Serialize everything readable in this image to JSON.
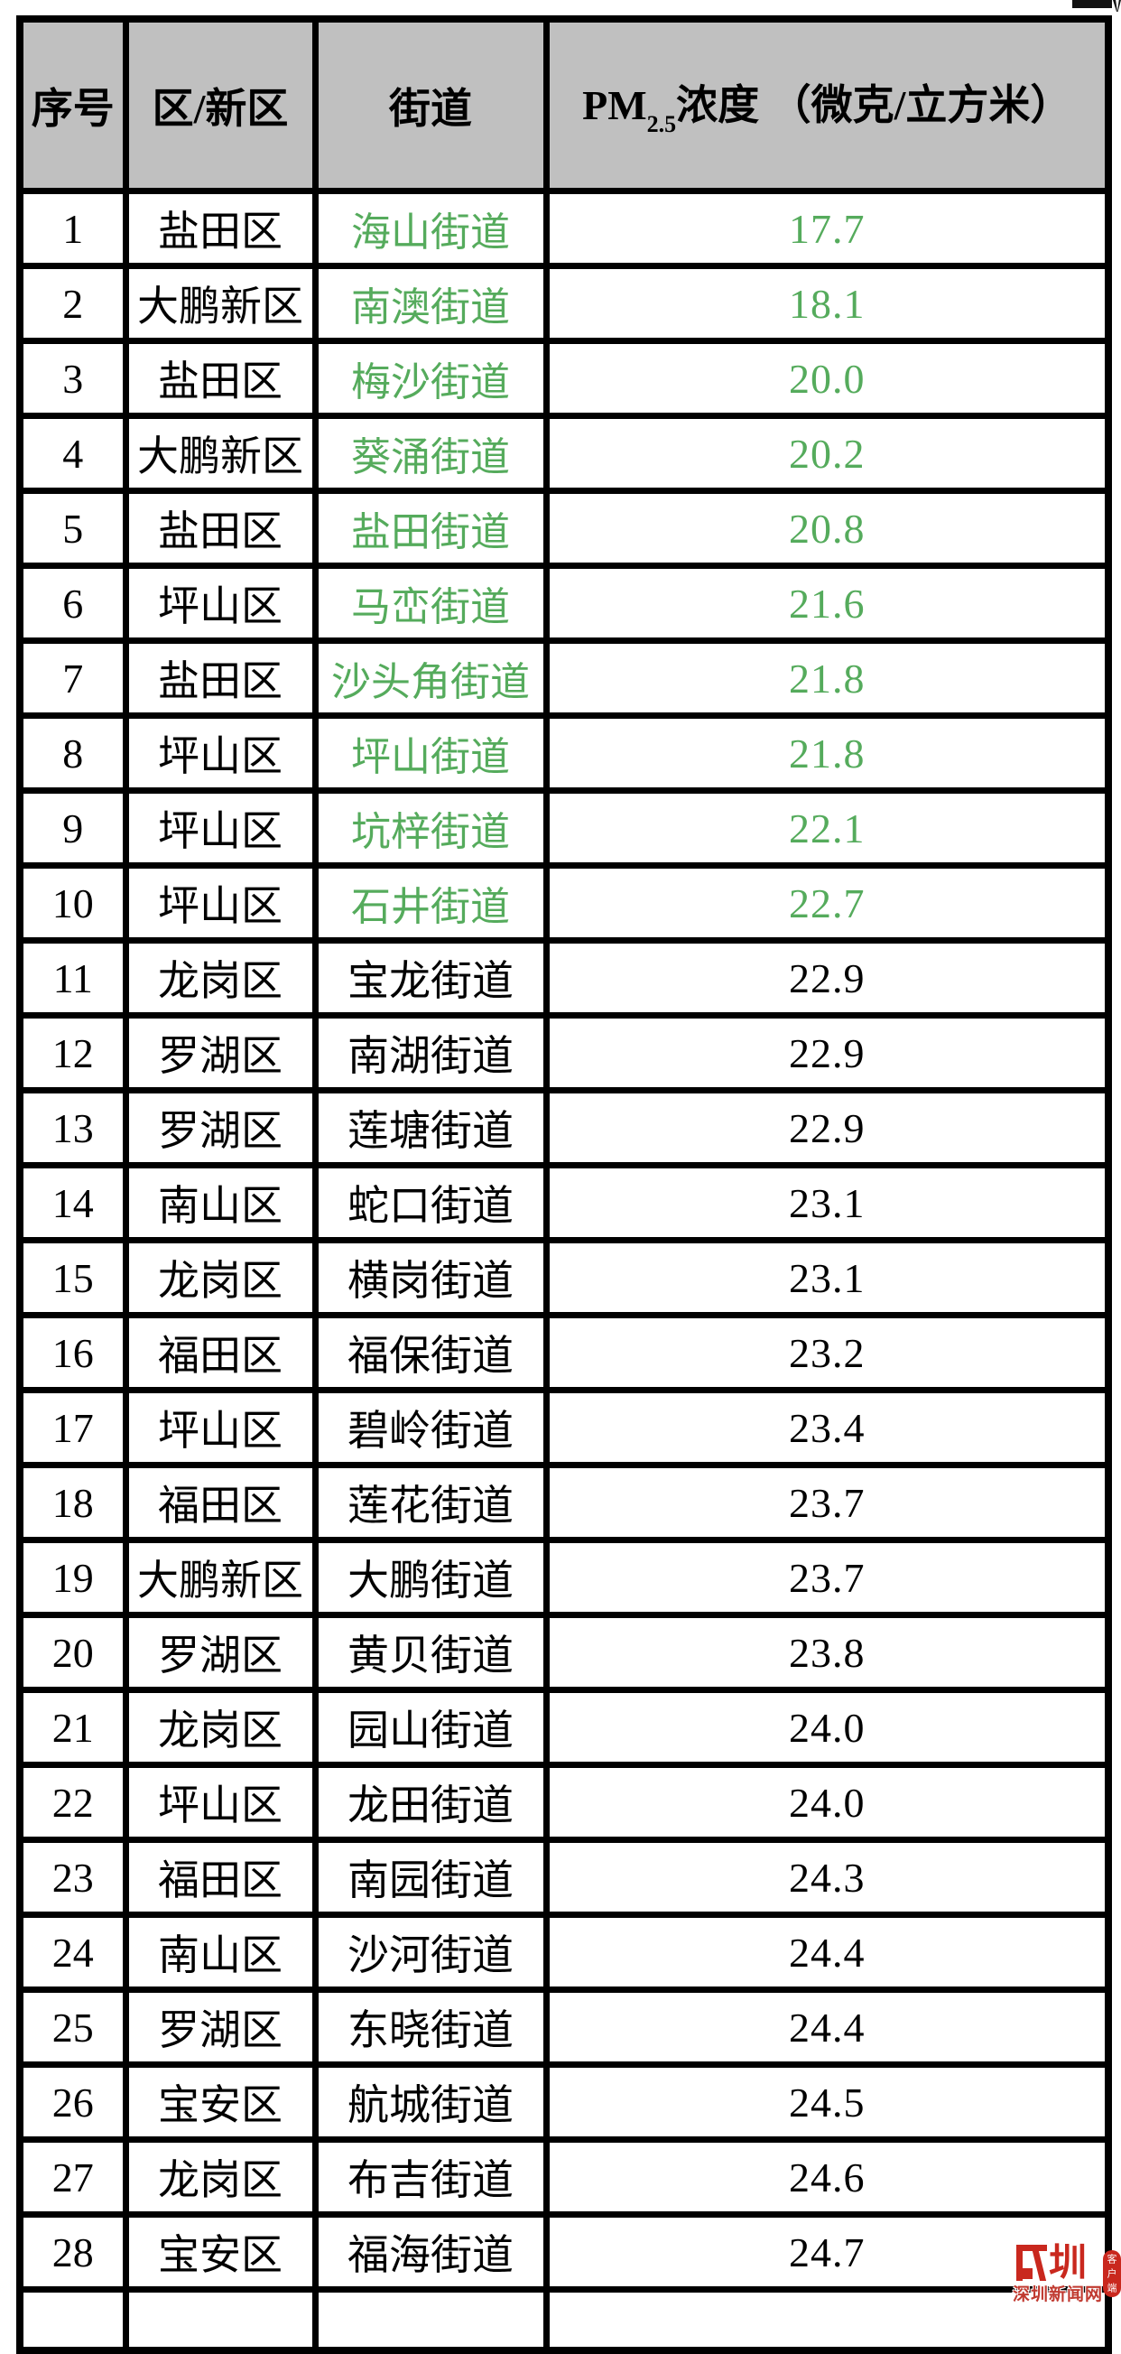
{
  "accent": {
    "green": "#55ab5c",
    "header_gray": "#c0c0c0",
    "watermark_red": "#c9281e"
  },
  "table": {
    "headers": {
      "seq": "序号",
      "district": "区/新区",
      "street": "街道",
      "pm_prefix": "PM",
      "pm_sub": "2.5",
      "pm_rest": "浓度 （微克/立方米）"
    },
    "rows": [
      {
        "no": "1",
        "district": "盐田区",
        "street": "海山街道",
        "value": "17.7",
        "highlight": true
      },
      {
        "no": "2",
        "district": "大鹏新区",
        "street": "南澳街道",
        "value": "18.1",
        "highlight": true
      },
      {
        "no": "3",
        "district": "盐田区",
        "street": "梅沙街道",
        "value": "20.0",
        "highlight": true
      },
      {
        "no": "4",
        "district": "大鹏新区",
        "street": "葵涌街道",
        "value": "20.2",
        "highlight": true
      },
      {
        "no": "5",
        "district": "盐田区",
        "street": "盐田街道",
        "value": "20.8",
        "highlight": true
      },
      {
        "no": "6",
        "district": "坪山区",
        "street": "马峦街道",
        "value": "21.6",
        "highlight": true
      },
      {
        "no": "7",
        "district": "盐田区",
        "street": "沙头角街道",
        "value": "21.8",
        "highlight": true
      },
      {
        "no": "8",
        "district": "坪山区",
        "street": "坪山街道",
        "value": "21.8",
        "highlight": true
      },
      {
        "no": "9",
        "district": "坪山区",
        "street": "坑梓街道",
        "value": "22.1",
        "highlight": true
      },
      {
        "no": "10",
        "district": "坪山区",
        "street": "石井街道",
        "value": "22.7",
        "highlight": true
      },
      {
        "no": "11",
        "district": "龙岗区",
        "street": "宝龙街道",
        "value": "22.9",
        "highlight": false
      },
      {
        "no": "12",
        "district": "罗湖区",
        "street": "南湖街道",
        "value": "22.9",
        "highlight": false
      },
      {
        "no": "13",
        "district": "罗湖区",
        "street": "莲塘街道",
        "value": "22.9",
        "highlight": false
      },
      {
        "no": "14",
        "district": "南山区",
        "street": "蛇口街道",
        "value": "23.1",
        "highlight": false
      },
      {
        "no": "15",
        "district": "龙岗区",
        "street": "横岗街道",
        "value": "23.1",
        "highlight": false
      },
      {
        "no": "16",
        "district": "福田区",
        "street": "福保街道",
        "value": "23.2",
        "highlight": false
      },
      {
        "no": "17",
        "district": "坪山区",
        "street": "碧岭街道",
        "value": "23.4",
        "highlight": false
      },
      {
        "no": "18",
        "district": "福田区",
        "street": "莲花街道",
        "value": "23.7",
        "highlight": false
      },
      {
        "no": "19",
        "district": "大鹏新区",
        "street": "大鹏街道",
        "value": "23.7",
        "highlight": false
      },
      {
        "no": "20",
        "district": "罗湖区",
        "street": "黄贝街道",
        "value": "23.8",
        "highlight": false
      },
      {
        "no": "21",
        "district": "龙岗区",
        "street": "园山街道",
        "value": "24.0",
        "highlight": false
      },
      {
        "no": "22",
        "district": "坪山区",
        "street": "龙田街道",
        "value": "24.0",
        "highlight": false
      },
      {
        "no": "23",
        "district": "福田区",
        "street": "南园街道",
        "value": "24.3",
        "highlight": false
      },
      {
        "no": "24",
        "district": "南山区",
        "street": "沙河街道",
        "value": "24.4",
        "highlight": false
      },
      {
        "no": "25",
        "district": "罗湖区",
        "street": "东晓街道",
        "value": "24.4",
        "highlight": false
      },
      {
        "no": "26",
        "district": "宝安区",
        "street": "航城街道",
        "value": "24.5",
        "highlight": false
      },
      {
        "no": "27",
        "district": "龙岗区",
        "street": "布吉街道",
        "value": "24.6",
        "highlight": false
      },
      {
        "no": "28",
        "district": "宝安区",
        "street": "福海街道",
        "value": "24.7",
        "highlight": false
      }
    ]
  },
  "watermark": {
    "logo": "圳",
    "site": "深圳新闻网",
    "badge": "客户端"
  }
}
